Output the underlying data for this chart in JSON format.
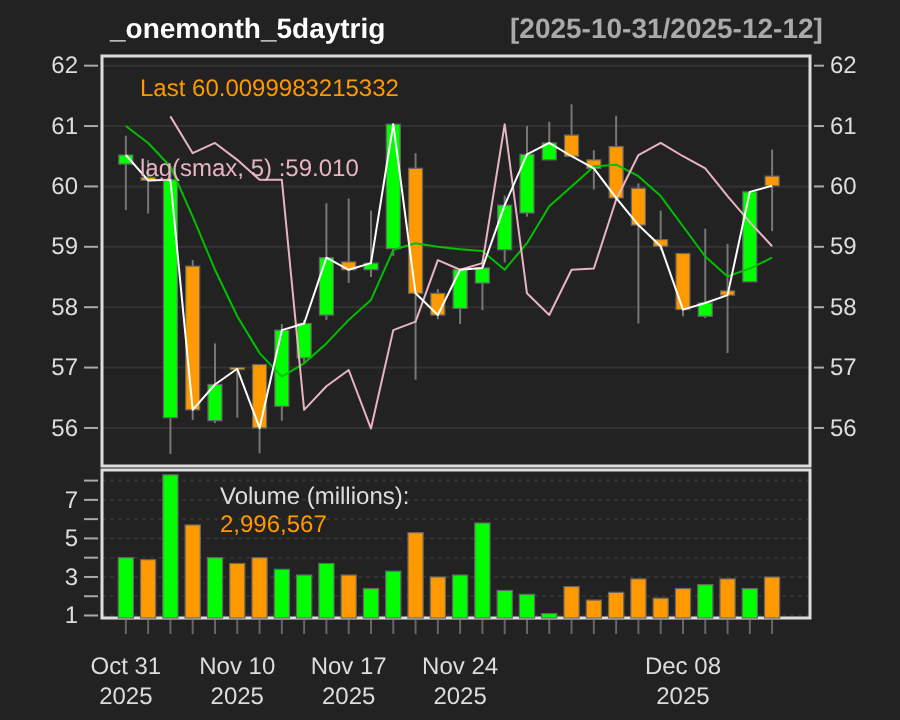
{
  "chart_data": [
    {
      "type": "candlestick",
      "title": "_onemonth_5daytrig",
      "subtitle": "[2025-10-31/2025-12-12]",
      "categories": [
        null,
        null,
        null,
        null,
        null,
        null,
        null,
        null,
        null,
        null,
        null,
        null,
        null,
        null,
        null,
        null,
        null,
        null,
        null,
        null,
        null,
        null,
        null,
        null,
        null,
        null,
        null,
        null,
        null,
        null
      ],
      "ohlc": [
        [
          60.37,
          60.84,
          59.61,
          60.52
        ],
        [
          60.15,
          60.44,
          59.55,
          60.1
        ],
        [
          56.17,
          60.28,
          55.57,
          60.11
        ],
        [
          58.68,
          58.78,
          56.13,
          56.3
        ],
        [
          56.12,
          57.4,
          56.08,
          56.72
        ],
        [
          57.0,
          57.0,
          56.17,
          56.98
        ],
        [
          57.05,
          57.05,
          55.58,
          56.0
        ],
        [
          56.36,
          57.72,
          56.12,
          57.62
        ],
        [
          57.16,
          57.79,
          57.07,
          57.73
        ],
        [
          57.87,
          59.72,
          57.79,
          58.82
        ],
        [
          58.75,
          59.8,
          58.4,
          58.62
        ],
        [
          58.62,
          59.6,
          58.5,
          58.73
        ],
        [
          58.97,
          61.05,
          58.85,
          61.03
        ],
        [
          60.3,
          60.55,
          56.8,
          58.23
        ],
        [
          58.23,
          58.3,
          57.8,
          57.87
        ],
        [
          57.98,
          58.62,
          57.72,
          58.62
        ],
        [
          58.4,
          58.78,
          57.95,
          58.65
        ],
        [
          58.95,
          59.85,
          58.74,
          59.69
        ],
        [
          59.56,
          61.0,
          59.5,
          60.53
        ],
        [
          60.44,
          61.07,
          60.44,
          60.72
        ],
        [
          60.85,
          61.36,
          60.5,
          60.5
        ],
        [
          60.44,
          60.6,
          59.95,
          60.3
        ],
        [
          60.66,
          61.17,
          59.77,
          59.81
        ],
        [
          59.97,
          60.05,
          57.73,
          59.36
        ],
        [
          59.12,
          59.6,
          58.95,
          59.01
        ],
        [
          58.89,
          58.89,
          57.85,
          57.96
        ],
        [
          57.85,
          59.3,
          57.82,
          58.07
        ],
        [
          58.27,
          59.05,
          57.24,
          58.2
        ],
        [
          58.42,
          59.91,
          58.42,
          59.91
        ],
        [
          60.17,
          60.61,
          59.26,
          60.01
        ]
      ],
      "colors": [
        "#00ff00",
        "#ff9900",
        "#00ff00",
        "#ff9900",
        "#00ff00",
        "#ff9900",
        "#ff9900",
        "#00ff00",
        "#00ff00",
        "#00ff00",
        "#ff9900",
        "#00ff00",
        "#00ff00",
        "#ff9900",
        "#ff9900",
        "#00ff00",
        "#00ff00",
        "#00ff00",
        "#00ff00",
        "#00ff00",
        "#ff9900",
        "#ff9900",
        "#ff9900",
        "#ff9900",
        "#ff9900",
        "#ff9900",
        "#00ff00",
        "#ff9900",
        "#00ff00",
        "#ff9900"
      ],
      "series": [
        {
          "type": "line",
          "color": "#00c000",
          "values": [
            61.0,
            60.72,
            60.33,
            59.5,
            58.62,
            57.85,
            57.24,
            56.85,
            57.07,
            57.4,
            57.79,
            58.12,
            58.95,
            59.06,
            59.0,
            58.96,
            58.93,
            58.62,
            59.06,
            59.67,
            60.0,
            60.33,
            60.36,
            60.17,
            59.84,
            59.34,
            58.84,
            58.51,
            58.64,
            58.82
          ]
        },
        {
          "type": "line",
          "color": "#e8b4c0",
          "values": [
            null,
            null,
            61.16,
            60.55,
            60.72,
            60.44,
            60.11,
            60.11,
            56.3,
            56.69,
            56.96,
            55.99,
            57.62,
            57.76,
            58.78,
            58.62,
            58.73,
            61.03,
            58.23,
            57.87,
            58.62,
            58.64,
            59.78,
            60.52,
            60.72,
            60.5,
            60.3,
            59.84,
            59.41,
            59.01
          ]
        },
        {
          "type": "line",
          "color": "#ffffff",
          "values": [
            60.52,
            60.1,
            60.11,
            56.3,
            56.72,
            56.98,
            56.0,
            57.62,
            57.73,
            58.82,
            58.62,
            58.73,
            61.03,
            58.23,
            57.87,
            58.62,
            58.65,
            59.69,
            60.53,
            60.72,
            60.5,
            60.3,
            59.81,
            59.36,
            59.01,
            57.96,
            58.07,
            58.2,
            59.91,
            60.01
          ]
        }
      ],
      "annotations": [
        "Last 60.0099983215332",
        "lag(smax, 5) :59.010"
      ],
      "ylim": [
        55.37,
        62.16
      ],
      "yticks": [
        56,
        57,
        58,
        59,
        60,
        61,
        62
      ],
      "y2lim": [
        55.37,
        62.16
      ],
      "y2ticks": [
        56,
        57,
        58,
        59,
        60,
        61,
        62
      ],
      "grid": "y",
      "tick_labels": "y"
    },
    {
      "type": "bar",
      "categories": [
        "Oct 31\n2025",
        null,
        null,
        null,
        null,
        "Nov 10\n2025",
        null,
        null,
        null,
        null,
        "Nov 17\n2025",
        null,
        null,
        null,
        null,
        "Nov 24\n2025",
        null,
        null,
        null,
        null,
        null,
        null,
        null,
        null,
        null,
        "Dec 08\n2025",
        null,
        null,
        null,
        null
      ],
      "values": [
        4.0,
        3.9,
        8.3,
        5.7,
        4.0,
        3.7,
        4.0,
        3.4,
        3.1,
        3.7,
        3.1,
        2.4,
        3.3,
        5.3,
        3.0,
        3.1,
        5.8,
        2.3,
        2.1,
        1.1,
        2.5,
        1.8,
        2.2,
        2.9,
        1.9,
        2.4,
        2.6,
        2.9,
        2.4,
        2.996567
      ],
      "colors": [
        "#00ff00",
        "#ff9900",
        "#00ff00",
        "#ff9900",
        "#00ff00",
        "#ff9900",
        "#ff9900",
        "#00ff00",
        "#00ff00",
        "#00ff00",
        "#ff9900",
        "#00ff00",
        "#00ff00",
        "#ff9900",
        "#ff9900",
        "#00ff00",
        "#00ff00",
        "#00ff00",
        "#00ff00",
        "#00ff00",
        "#ff9900",
        "#ff9900",
        "#ff9900",
        "#ff9900",
        "#ff9900",
        "#ff9900",
        "#00ff00",
        "#ff9900",
        "#00ff00",
        "#ff9900"
      ],
      "annotations": [
        "Volume (millions):",
        "2,996,567"
      ],
      "ylim": [
        0.87,
        8.55
      ],
      "yticks": [
        1,
        {
          "value": 2,
          "label": null
        },
        3,
        {
          "value": 4,
          "label": null
        },
        5,
        {
          "value": 6,
          "label": null
        },
        7,
        {
          "value": 8,
          "label": null
        }
      ],
      "grid": "y"
    }
  ]
}
